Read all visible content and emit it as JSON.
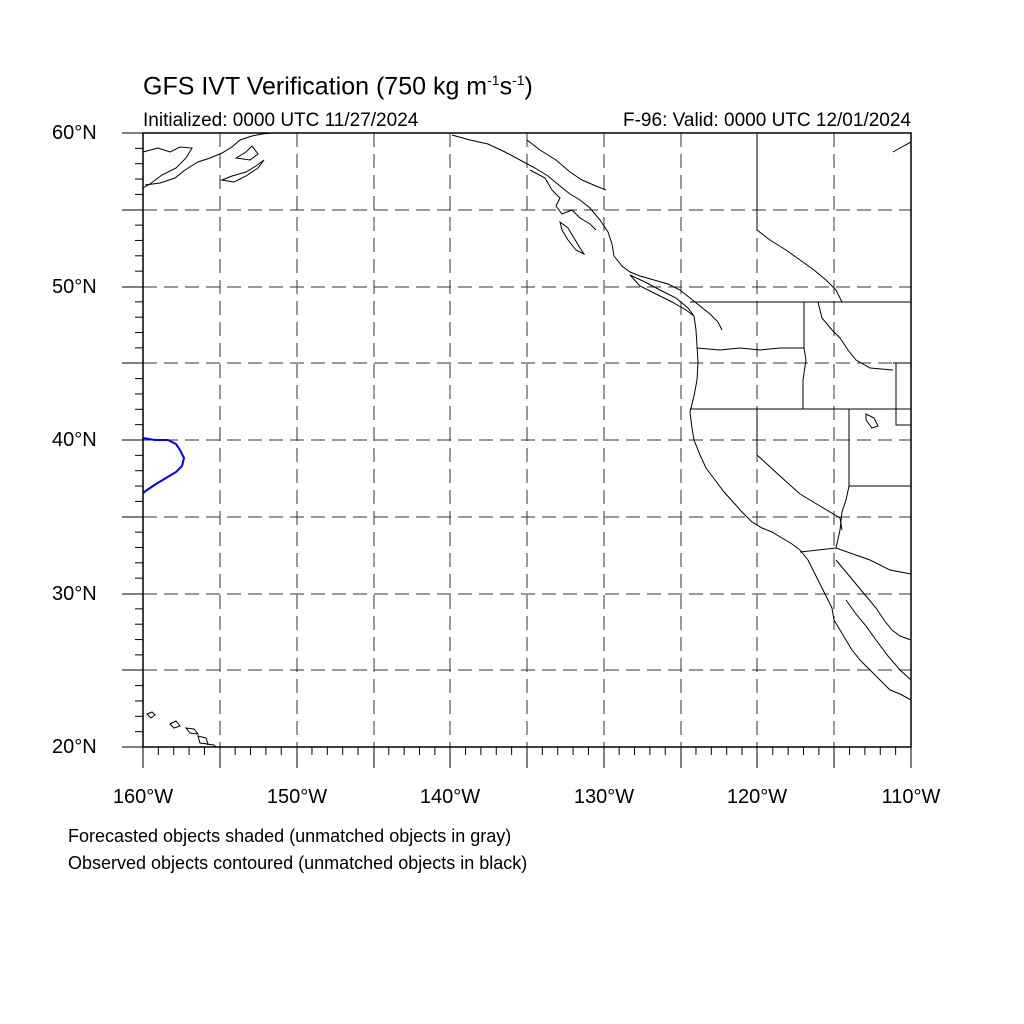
{
  "title_main": "GFS IVT Verification (750 kg m",
  "title_exp1": "-1",
  "title_mid": "s",
  "title_exp2": "-1",
  "title_end": ")",
  "init_label": "Initialized: 0000 UTC 11/27/2024",
  "valid_label": "F-96: Valid: 0000 UTC 12/01/2024",
  "lat_labels": [
    "60°N",
    "50°N",
    "40°N",
    "30°N",
    "20°N"
  ],
  "lon_labels": [
    "160°W",
    "150°W",
    "140°W",
    "130°W",
    "120°W",
    "110°W"
  ],
  "notes": [
    "Forecasted objects shaded (unmatched objects in gray)",
    "Observed objects contoured (unmatched objects in black)"
  ],
  "map": {
    "lon_range": [
      -160,
      -110
    ],
    "lat_range": [
      20,
      60
    ],
    "grid_spacing_deg": 5,
    "projection": "cylindrical equidistant",
    "observed_object_color": "#0000ff"
  }
}
